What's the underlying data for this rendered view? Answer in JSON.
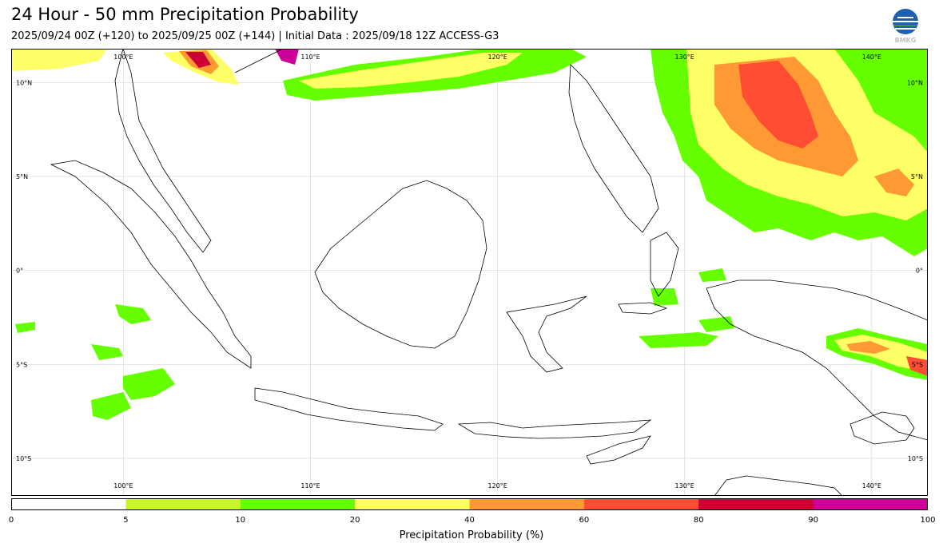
{
  "title": "24 Hour - 50 mm Precipitation Probability",
  "subtitle": "2025/09/24 00Z (+120) to 2025/09/25 00Z (+144) | Initial Data : 2025/09/18 12Z ACCESS-G3",
  "logo_text": "BMKG",
  "map": {
    "lon_labels_top": [
      "100°E",
      "110°E",
      "120°E",
      "130°E",
      "140°E"
    ],
    "lon_labels_bottom": [
      "100°E",
      "110°E",
      "120°E",
      "130°E",
      "140°E"
    ],
    "lat_labels_left": [
      "10°N",
      "5°N",
      "0°",
      "5°S",
      "10°S"
    ],
    "lat_labels_right": [
      "10°N",
      "5°N",
      "0°",
      "5°S",
      "10°S"
    ],
    "lon_values": [
      100,
      110,
      120,
      130,
      140
    ],
    "lat_values": [
      10,
      5,
      0,
      -5,
      -10
    ],
    "extent": {
      "lon_min": 94.0,
      "lon_max": 143.0,
      "lat_max": 11.8,
      "lat_min": -12.0
    }
  },
  "colorbar": {
    "label": "Precipitation Probability (%)",
    "ticks": [
      "0",
      "5",
      "10",
      "20",
      "40",
      "60",
      "80",
      "90",
      "100"
    ],
    "colors": [
      "#ffffff",
      "#c8f52d",
      "#66ff00",
      "#ffff66",
      "#ff9933",
      "#ff4d33",
      "#cc0033",
      "#cc0099"
    ]
  }
}
